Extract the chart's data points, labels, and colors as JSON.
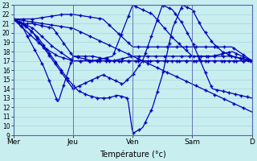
{
  "background_color": "#c8eef0",
  "grid_color": "#a0d8dc",
  "line_color": "#0000bb",
  "ylim": [
    9,
    23
  ],
  "yticks": [
    9,
    10,
    11,
    12,
    13,
    14,
    15,
    16,
    17,
    18,
    19,
    20,
    21,
    22,
    23
  ],
  "xlabel": "Température (°c)",
  "day_labels": [
    "Mer",
    "Jeu",
    "Ven",
    "Sam",
    "D"
  ],
  "day_positions": [
    0,
    24,
    48,
    72,
    96
  ],
  "xlim": [
    0,
    100
  ]
}
